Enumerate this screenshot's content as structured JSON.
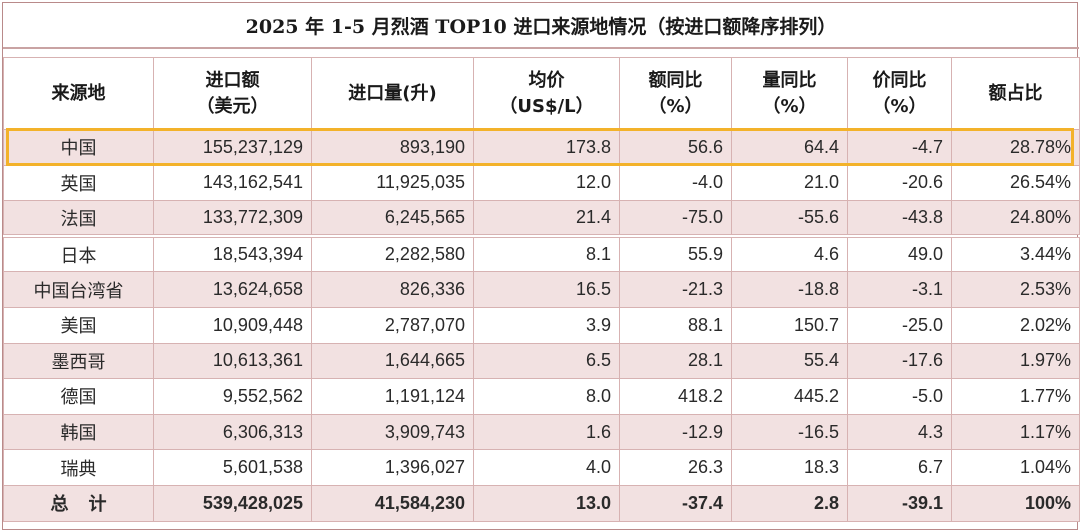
{
  "title": "2025 年 1-5 月烈酒  TOP10 进口来源地情况（按进口额降序排列）",
  "headers": [
    {
      "line1": "来源地",
      "line2": ""
    },
    {
      "line1": "进口额",
      "line2": "（美元）"
    },
    {
      "line1": "进口量(升)",
      "line2": ""
    },
    {
      "line1": "均价",
      "line2": "（US$/L）"
    },
    {
      "line1": "额同比",
      "line2": "（%）"
    },
    {
      "line1": "量同比",
      "line2": "（%）"
    },
    {
      "line1": "价同比",
      "line2": "（%）"
    },
    {
      "line1": "额占比",
      "line2": ""
    }
  ],
  "rows": [
    [
      "中国",
      "155,237,129",
      "893,190",
      "173.8",
      "56.6",
      "64.4",
      "-4.7",
      "28.78%"
    ],
    [
      "英国",
      "143,162,541",
      "11,925,035",
      "12.0",
      "-4.0",
      "21.0",
      "-20.6",
      "26.54%"
    ],
    [
      "法国",
      "133,772,309",
      "6,245,565",
      "21.4",
      "-75.0",
      "-55.6",
      "-43.8",
      "24.80%"
    ],
    [
      "日本",
      "18,543,394",
      "2,282,580",
      "8.1",
      "55.9",
      "4.6",
      "49.0",
      "3.44%"
    ],
    [
      "中国台湾省",
      "13,624,658",
      "826,336",
      "16.5",
      "-21.3",
      "-18.8",
      "-3.1",
      "2.53%"
    ],
    [
      "美国",
      "10,909,448",
      "2,787,070",
      "3.9",
      "88.1",
      "150.7",
      "-25.0",
      "2.02%"
    ],
    [
      "墨西哥",
      "10,613,361",
      "1,644,665",
      "6.5",
      "28.1",
      "55.4",
      "-17.6",
      "1.97%"
    ],
    [
      "德国",
      "9,552,562",
      "1,191,124",
      "8.0",
      "418.2",
      "445.2",
      "-5.0",
      "1.77%"
    ],
    [
      "韩国",
      "6,306,313",
      "3,909,743",
      "1.6",
      "-12.9",
      "-16.5",
      "4.3",
      "1.17%"
    ],
    [
      "瑞典",
      "5,601,538",
      "1,396,027",
      "4.0",
      "26.3",
      "18.3",
      "6.7",
      "1.04%"
    ]
  ],
  "total": [
    "总    计",
    "539,428,025",
    "41,584,230",
    "13.0",
    "-37.4",
    "2.8",
    "-39.1",
    "100%"
  ],
  "colors": {
    "highlight": "#f3b22a",
    "shade": "#f2e1e1",
    "border": "#d7b2b2"
  }
}
